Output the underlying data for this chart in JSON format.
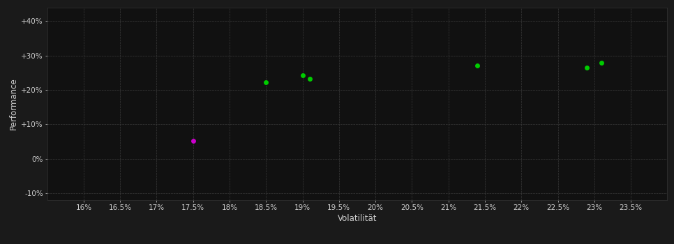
{
  "background_color": "#1a1a1a",
  "plot_bg_color": "#111111",
  "grid_color": "#3a3a3a",
  "text_color": "#cccccc",
  "xlabel": "Volatilität",
  "ylabel": "Performance",
  "xlim": [
    0.155,
    0.24
  ],
  "ylim": [
    -0.12,
    0.44
  ],
  "xtick_values": [
    0.16,
    0.165,
    0.17,
    0.175,
    0.18,
    0.185,
    0.19,
    0.195,
    0.2,
    0.205,
    0.21,
    0.215,
    0.22,
    0.225,
    0.23,
    0.235
  ],
  "ytick_values": [
    -0.1,
    0.0,
    0.1,
    0.2,
    0.3,
    0.4
  ],
  "ytick_labels": [
    "-10%",
    "0%",
    "+10%",
    "+20%",
    "+30%",
    "+40%"
  ],
  "green_points": [
    [
      0.185,
      0.222
    ],
    [
      0.19,
      0.243
    ],
    [
      0.191,
      0.232
    ],
    [
      0.214,
      0.27
    ],
    [
      0.229,
      0.264
    ],
    [
      0.231,
      0.279
    ]
  ],
  "magenta_points": [
    [
      0.175,
      0.052
    ]
  ],
  "green_color": "#00cc00",
  "magenta_color": "#cc00cc",
  "marker_size": 5,
  "tick_fontsize": 7.5,
  "label_fontsize": 8.5
}
